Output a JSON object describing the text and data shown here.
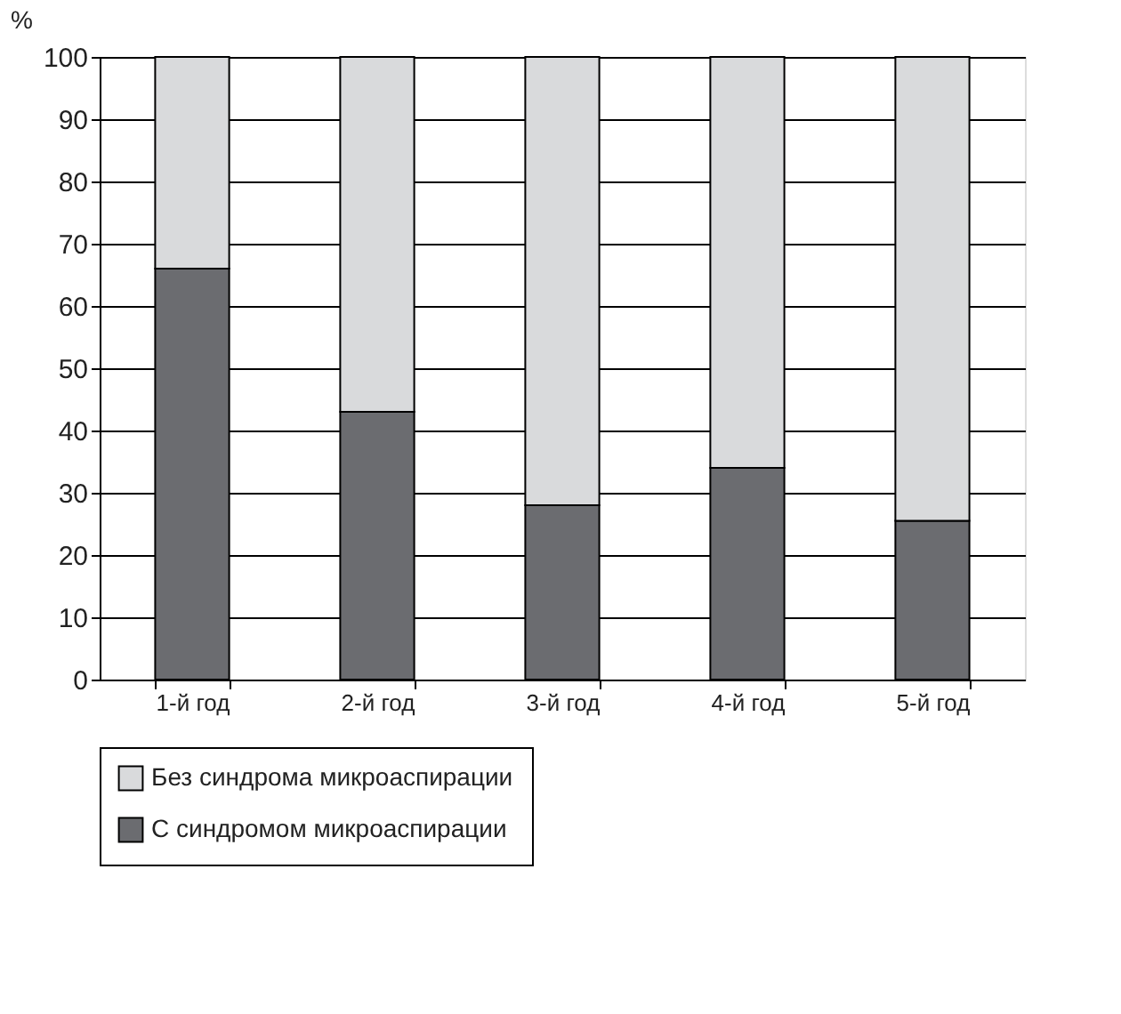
{
  "chart_data": {
    "type": "bar",
    "stacked": true,
    "ylabel": "%",
    "categories": [
      "1-й год",
      "2-й год",
      "3-й год",
      "4-й год",
      "5-й год"
    ],
    "series": [
      {
        "name": "С синдромом микроаспирации",
        "color": "#6b6c70",
        "values": [
          66,
          43,
          28,
          34,
          25.5
        ]
      },
      {
        "name": "Без синдрома микроаспирации",
        "color": "#d9dadc",
        "values": [
          34,
          57,
          72,
          66,
          74.5
        ]
      }
    ],
    "ylim": [
      0,
      100
    ],
    "yticks": [
      0,
      10,
      20,
      30,
      40,
      50,
      60,
      70,
      80,
      90,
      100
    ],
    "grid": "y",
    "legend": "bottom"
  }
}
